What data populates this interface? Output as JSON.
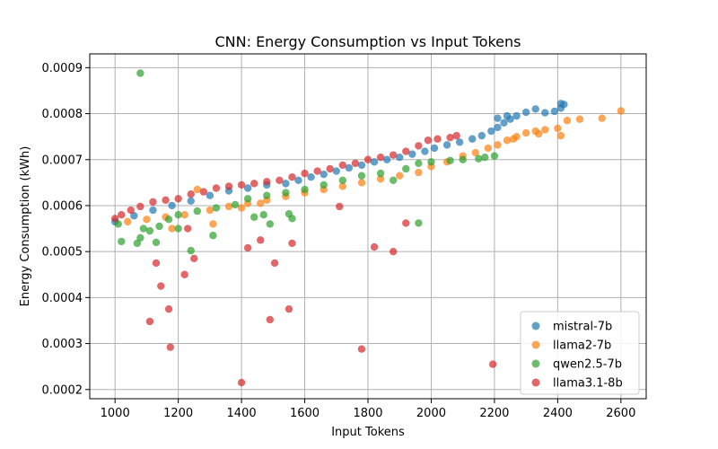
{
  "chart_data": {
    "type": "scatter",
    "title": "CNN: Energy Consumption vs Input Tokens",
    "xlabel": "Input Tokens",
    "ylabel": "Energy Consumption (kWh)",
    "xlim": [
      920,
      2680
    ],
    "ylim": [
      0.00018,
      0.00093
    ],
    "xticks": [
      1000,
      1200,
      1400,
      1600,
      1800,
      2000,
      2200,
      2400,
      2600
    ],
    "yticks": [
      0.0002,
      0.0003,
      0.0004,
      0.0005,
      0.0006,
      0.0007,
      0.0008,
      0.0009
    ],
    "grid": true,
    "legend_position": "lower-right",
    "series": [
      {
        "name": "mistral-7b",
        "color": "#1f77b4",
        "points": [
          [
            1000,
            0.000565
          ],
          [
            1060,
            0.000578
          ],
          [
            1120,
            0.00059
          ],
          [
            1180,
            0.0006
          ],
          [
            1240,
            0.00061
          ],
          [
            1300,
            0.000622
          ],
          [
            1360,
            0.000632
          ],
          [
            1420,
            0.000638
          ],
          [
            1480,
            0.000645
          ],
          [
            1540,
            0.000648
          ],
          [
            1580,
            0.000655
          ],
          [
            1620,
            0.000662
          ],
          [
            1660,
            0.000668
          ],
          [
            1700,
            0.000675
          ],
          [
            1740,
            0.000682
          ],
          [
            1780,
            0.000688
          ],
          [
            1820,
            0.000695
          ],
          [
            1860,
            0.0007
          ],
          [
            1900,
            0.000705
          ],
          [
            1940,
            0.000712
          ],
          [
            1980,
            0.000718
          ],
          [
            2010,
            0.000725
          ],
          [
            2050,
            0.000732
          ],
          [
            2090,
            0.000738
          ],
          [
            2130,
            0.000745
          ],
          [
            2160,
            0.000752
          ],
          [
            2190,
            0.000762
          ],
          [
            2210,
            0.00077
          ],
          [
            2230,
            0.00078
          ],
          [
            2250,
            0.000788
          ],
          [
            2270,
            0.000795
          ],
          [
            2300,
            0.000803
          ],
          [
            2330,
            0.00081
          ],
          [
            2360,
            0.000802
          ],
          [
            2390,
            0.000805
          ],
          [
            2410,
            0.000822
          ],
          [
            2420,
            0.00082
          ],
          [
            2410,
            0.000812
          ],
          [
            2240,
            0.000795
          ],
          [
            2210,
            0.00079
          ]
        ]
      },
      {
        "name": "llama2-7b",
        "color": "#ff7f0e",
        "points": [
          [
            1040,
            0.000565
          ],
          [
            1100,
            0.00057
          ],
          [
            1160,
            0.000575
          ],
          [
            1220,
            0.00058
          ],
          [
            1300,
            0.00059
          ],
          [
            1360,
            0.000598
          ],
          [
            1420,
            0.000605
          ],
          [
            1480,
            0.000612
          ],
          [
            1540,
            0.00062
          ],
          [
            1600,
            0.000628
          ],
          [
            1660,
            0.000635
          ],
          [
            1720,
            0.000642
          ],
          [
            1780,
            0.00065
          ],
          [
            1840,
            0.000658
          ],
          [
            1900,
            0.000665
          ],
          [
            1960,
            0.000672
          ],
          [
            2000,
            0.000685
          ],
          [
            2050,
            0.000695
          ],
          [
            2100,
            0.000708
          ],
          [
            2140,
            0.000715
          ],
          [
            2180,
            0.000725
          ],
          [
            2210,
            0.000732
          ],
          [
            2240,
            0.000742
          ],
          [
            2270,
            0.00075
          ],
          [
            2300,
            0.000758
          ],
          [
            2330,
            0.000762
          ],
          [
            2360,
            0.000765
          ],
          [
            2400,
            0.000768
          ],
          [
            2430,
            0.000785
          ],
          [
            2470,
            0.000788
          ],
          [
            2540,
            0.00079
          ],
          [
            2600,
            0.000806
          ],
          [
            1260,
            0.000635
          ],
          [
            1310,
            0.00056
          ],
          [
            1400,
            0.000595
          ],
          [
            1460,
            0.000605
          ],
          [
            2260,
            0.000745
          ],
          [
            2340,
            0.000756
          ],
          [
            2410,
            0.000752
          ],
          [
            1180,
            0.00055
          ]
        ]
      },
      {
        "name": "qwen2.5-7b",
        "color": "#2ca02c",
        "points": [
          [
            1080,
            0.000888
          ],
          [
            1010,
            0.00056
          ],
          [
            1020,
            0.000522
          ],
          [
            1070,
            0.000518
          ],
          [
            1080,
            0.00053
          ],
          [
            1130,
            0.00052
          ],
          [
            1110,
            0.000545
          ],
          [
            1140,
            0.000555
          ],
          [
            1170,
            0.00057
          ],
          [
            1200,
            0.00058
          ],
          [
            1240,
            0.000502
          ],
          [
            1310,
            0.000535
          ],
          [
            1260,
            0.000588
          ],
          [
            1320,
            0.000595
          ],
          [
            1380,
            0.000602
          ],
          [
            1440,
            0.000575
          ],
          [
            1470,
            0.00058
          ],
          [
            1490,
            0.00056
          ],
          [
            1550,
            0.000582
          ],
          [
            1560,
            0.000572
          ],
          [
            1420,
            0.000615
          ],
          [
            1480,
            0.000622
          ],
          [
            1540,
            0.000628
          ],
          [
            1600,
            0.000635
          ],
          [
            1660,
            0.000645
          ],
          [
            1720,
            0.000655
          ],
          [
            1780,
            0.000665
          ],
          [
            1840,
            0.00067
          ],
          [
            1880,
            0.000655
          ],
          [
            1920,
            0.00068
          ],
          [
            1960,
            0.000692
          ],
          [
            2000,
            0.000695
          ],
          [
            2060,
            0.000698
          ],
          [
            2100,
            0.0007
          ],
          [
            2150,
            0.000702
          ],
          [
            2200,
            0.000708
          ],
          [
            1960,
            0.000562
          ],
          [
            2170,
            0.000705
          ],
          [
            1090,
            0.00055
          ],
          [
            1200,
            0.00055
          ]
        ]
      },
      {
        "name": "llama3.1-8b",
        "color": "#d62728",
        "points": [
          [
            1000,
            0.000572
          ],
          [
            1020,
            0.00058
          ],
          [
            1050,
            0.00059
          ],
          [
            1080,
            0.000598
          ],
          [
            1120,
            0.000608
          ],
          [
            1160,
            0.000612
          ],
          [
            1200,
            0.000615
          ],
          [
            1240,
            0.000625
          ],
          [
            1280,
            0.00063
          ],
          [
            1320,
            0.000638
          ],
          [
            1360,
            0.000642
          ],
          [
            1400,
            0.000645
          ],
          [
            1440,
            0.000648
          ],
          [
            1480,
            0.000652
          ],
          [
            1520,
            0.000655
          ],
          [
            1560,
            0.000662
          ],
          [
            1600,
            0.00067
          ],
          [
            1640,
            0.000675
          ],
          [
            1680,
            0.00068
          ],
          [
            1720,
            0.000688
          ],
          [
            1760,
            0.000692
          ],
          [
            1800,
            0.0007
          ],
          [
            1840,
            0.000705
          ],
          [
            1880,
            0.00071
          ],
          [
            1920,
            0.000718
          ],
          [
            1960,
            0.00073
          ],
          [
            1990,
            0.000742
          ],
          [
            2020,
            0.000745
          ],
          [
            2060,
            0.000748
          ],
          [
            2080,
            0.000752
          ],
          [
            1110,
            0.000348
          ],
          [
            1130,
            0.000475
          ],
          [
            1145,
            0.000425
          ],
          [
            1170,
            0.000375
          ],
          [
            1175,
            0.000292
          ],
          [
            1220,
            0.00045
          ],
          [
            1230,
            0.00055
          ],
          [
            1250,
            0.000485
          ],
          [
            1400,
            0.000215
          ],
          [
            1420,
            0.000508
          ],
          [
            1460,
            0.000525
          ],
          [
            1490,
            0.000352
          ],
          [
            1505,
            0.000475
          ],
          [
            1550,
            0.000375
          ],
          [
            1560,
            0.000518
          ],
          [
            1710,
            0.000598
          ],
          [
            1780,
            0.000288
          ],
          [
            1820,
            0.00051
          ],
          [
            1880,
            0.0005
          ],
          [
            1920,
            0.000562
          ],
          [
            2195,
            0.000255
          ]
        ]
      }
    ]
  }
}
